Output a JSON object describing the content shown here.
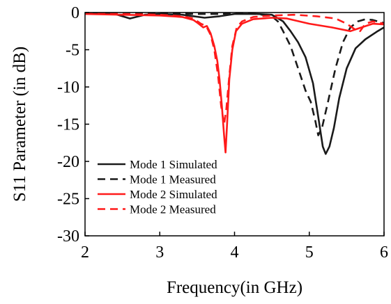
{
  "chart_data": {
    "type": "line",
    "xlabel": "Frequency(in GHz)",
    "ylabel": "S11 Parameter (in dB)",
    "xlim": [
      2,
      6
    ],
    "ylim": [
      -30,
      0
    ],
    "x_ticks": [
      "2",
      "3",
      "4",
      "5",
      "6"
    ],
    "y_ticks": [
      "0",
      "-5",
      "-10",
      "-15",
      "-20",
      "-25",
      "-30"
    ],
    "grid": false,
    "legend_position": "bottom-left",
    "series": [
      {
        "name": "Mode 1 Simulated",
        "color": "#1a1a1a",
        "dash": "solid",
        "points": [
          [
            2.0,
            -0.1
          ],
          [
            2.4,
            -0.2
          ],
          [
            2.6,
            -0.8
          ],
          [
            2.8,
            -0.3
          ],
          [
            3.0,
            -0.2
          ],
          [
            3.3,
            -0.3
          ],
          [
            3.6,
            -0.7
          ],
          [
            3.8,
            -0.5
          ],
          [
            4.0,
            -0.2
          ],
          [
            4.3,
            -0.2
          ],
          [
            4.5,
            -0.3
          ],
          [
            4.65,
            -1.2
          ],
          [
            4.75,
            -2.5
          ],
          [
            4.85,
            -4.0
          ],
          [
            4.95,
            -6.0
          ],
          [
            5.05,
            -9.5
          ],
          [
            5.12,
            -14.0
          ],
          [
            5.18,
            -18.0
          ],
          [
            5.22,
            -19.0
          ],
          [
            5.27,
            -18.0
          ],
          [
            5.33,
            -15.5
          ],
          [
            5.4,
            -11.5
          ],
          [
            5.5,
            -7.5
          ],
          [
            5.62,
            -4.8
          ],
          [
            5.75,
            -3.6
          ],
          [
            5.9,
            -2.6
          ],
          [
            6.0,
            -2.0
          ]
        ]
      },
      {
        "name": "Mode 1 Measured",
        "color": "#1a1a1a",
        "dash": "dashed",
        "points": [
          [
            2.0,
            -0.1
          ],
          [
            2.5,
            -0.2
          ],
          [
            3.0,
            -0.1
          ],
          [
            3.5,
            -0.2
          ],
          [
            3.8,
            -0.2
          ],
          [
            4.0,
            -0.1
          ],
          [
            4.3,
            -0.2
          ],
          [
            4.5,
            -0.5
          ],
          [
            4.58,
            -1.2
          ],
          [
            4.65,
            -2.5
          ],
          [
            4.75,
            -4.5
          ],
          [
            4.85,
            -7.5
          ],
          [
            4.95,
            -10.5
          ],
          [
            5.02,
            -12.0
          ],
          [
            5.08,
            -14.5
          ],
          [
            5.12,
            -16.5
          ],
          [
            5.17,
            -15.5
          ],
          [
            5.25,
            -12.0
          ],
          [
            5.35,
            -7.5
          ],
          [
            5.45,
            -4.0
          ],
          [
            5.55,
            -2.0
          ],
          [
            5.65,
            -1.2
          ],
          [
            5.75,
            -0.9
          ],
          [
            5.85,
            -1.0
          ],
          [
            5.95,
            -1.3
          ],
          [
            6.0,
            -1.4
          ]
        ]
      },
      {
        "name": "Mode 2 Simulated",
        "color": "#ff1a1a",
        "dash": "solid",
        "points": [
          [
            2.0,
            -0.2
          ],
          [
            2.5,
            -0.3
          ],
          [
            3.0,
            -0.4
          ],
          [
            3.3,
            -0.6
          ],
          [
            3.45,
            -1.0
          ],
          [
            3.52,
            -1.5
          ],
          [
            3.58,
            -2.0
          ],
          [
            3.63,
            -1.8
          ],
          [
            3.68,
            -2.8
          ],
          [
            3.73,
            -4.5
          ],
          [
            3.77,
            -6.5
          ],
          [
            3.8,
            -9.0
          ],
          [
            3.83,
            -12.5
          ],
          [
            3.86,
            -16.5
          ],
          [
            3.88,
            -18.8
          ],
          [
            3.9,
            -15.0
          ],
          [
            3.93,
            -9.0
          ],
          [
            3.97,
            -5.0
          ],
          [
            4.02,
            -2.5
          ],
          [
            4.1,
            -1.5
          ],
          [
            4.25,
            -0.9
          ],
          [
            4.5,
            -0.7
          ],
          [
            4.7,
            -0.8
          ],
          [
            5.0,
            -1.5
          ],
          [
            5.3,
            -2.0
          ],
          [
            5.55,
            -2.5
          ],
          [
            5.7,
            -2.0
          ],
          [
            5.85,
            -1.5
          ],
          [
            6.0,
            -1.6
          ]
        ]
      },
      {
        "name": "Mode 2 Measured",
        "color": "#ff1a1a",
        "dash": "dashed",
        "points": [
          [
            2.0,
            -0.1
          ],
          [
            2.5,
            -0.2
          ],
          [
            3.0,
            -0.3
          ],
          [
            3.3,
            -0.5
          ],
          [
            3.45,
            -0.8
          ],
          [
            3.55,
            -1.5
          ],
          [
            3.62,
            -1.8
          ],
          [
            3.68,
            -3.0
          ],
          [
            3.73,
            -5.0
          ],
          [
            3.78,
            -8.5
          ],
          [
            3.82,
            -12.5
          ],
          [
            3.86,
            -15.0
          ],
          [
            3.89,
            -13.0
          ],
          [
            3.93,
            -8.5
          ],
          [
            3.97,
            -4.5
          ],
          [
            4.03,
            -2.0
          ],
          [
            4.1,
            -1.2
          ],
          [
            4.25,
            -0.6
          ],
          [
            4.5,
            -0.4
          ],
          [
            4.8,
            -0.3
          ],
          [
            5.1,
            -0.5
          ],
          [
            5.35,
            -0.8
          ],
          [
            5.5,
            -1.5
          ],
          [
            5.6,
            -2.2
          ],
          [
            5.68,
            -2.5
          ],
          [
            5.75,
            -1.5
          ],
          [
            5.85,
            -1.2
          ],
          [
            6.0,
            -1.5
          ]
        ]
      }
    ]
  }
}
